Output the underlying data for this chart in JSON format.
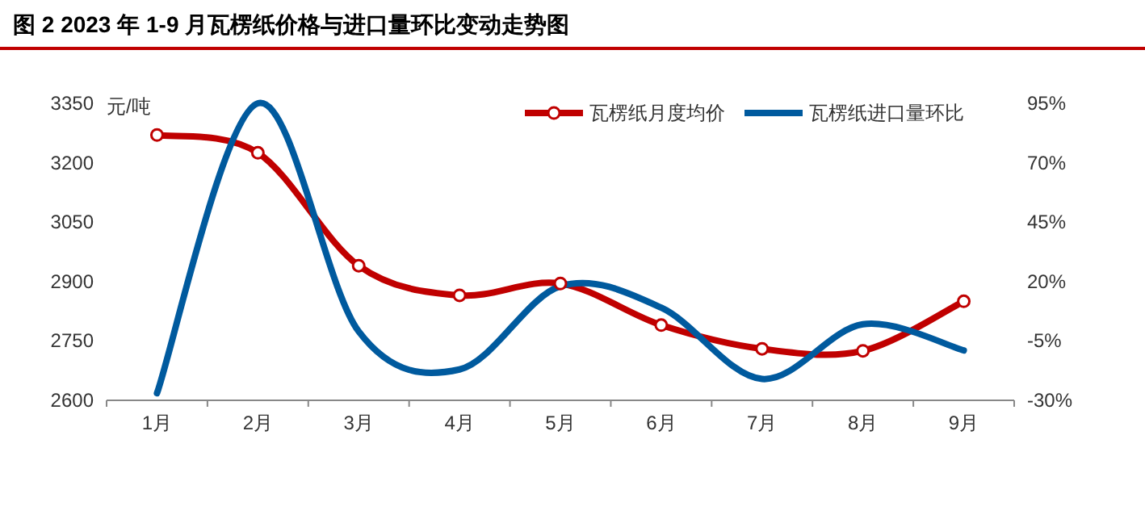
{
  "chart_data": {
    "type": "line",
    "title": "图 2 2023 年 1-9 月瓦楞纸价格与进口量环比变动走势图",
    "ylabel": "元/吨",
    "categories": [
      "1月",
      "2月",
      "3月",
      "4月",
      "5月",
      "6月",
      "7月",
      "8月",
      "9月"
    ],
    "series": [
      {
        "name": "瓦楞纸月度均价",
        "color": "#c00000",
        "marker": "circle",
        "values": [
          3270,
          3225,
          2940,
          2865,
          2895,
          2790,
          2730,
          2725,
          2850
        ]
      },
      {
        "name": "瓦楞纸进口量环比",
        "color": "#005a9e",
        "marker": "none",
        "axis": "y2",
        "values": [
          -27,
          95,
          -1,
          -17,
          18,
          9,
          -21,
          2,
          -9
        ]
      }
    ],
    "ylim": [
      2600,
      3350
    ],
    "yticks": [
      2600,
      2750,
      2900,
      3050,
      3200,
      3350
    ],
    "y2lim": [
      -30,
      95
    ],
    "y2ticks": [
      {
        "value": -30,
        "label": "-30%"
      },
      {
        "value": -5,
        "label": "-5%"
      },
      {
        "value": 20,
        "label": "20%"
      },
      {
        "value": 45,
        "label": "45%"
      },
      {
        "value": 70,
        "label": "70%"
      },
      {
        "value": 95,
        "label": "95%"
      }
    ],
    "legend": "top right",
    "grid": false,
    "line_style": "solid"
  }
}
